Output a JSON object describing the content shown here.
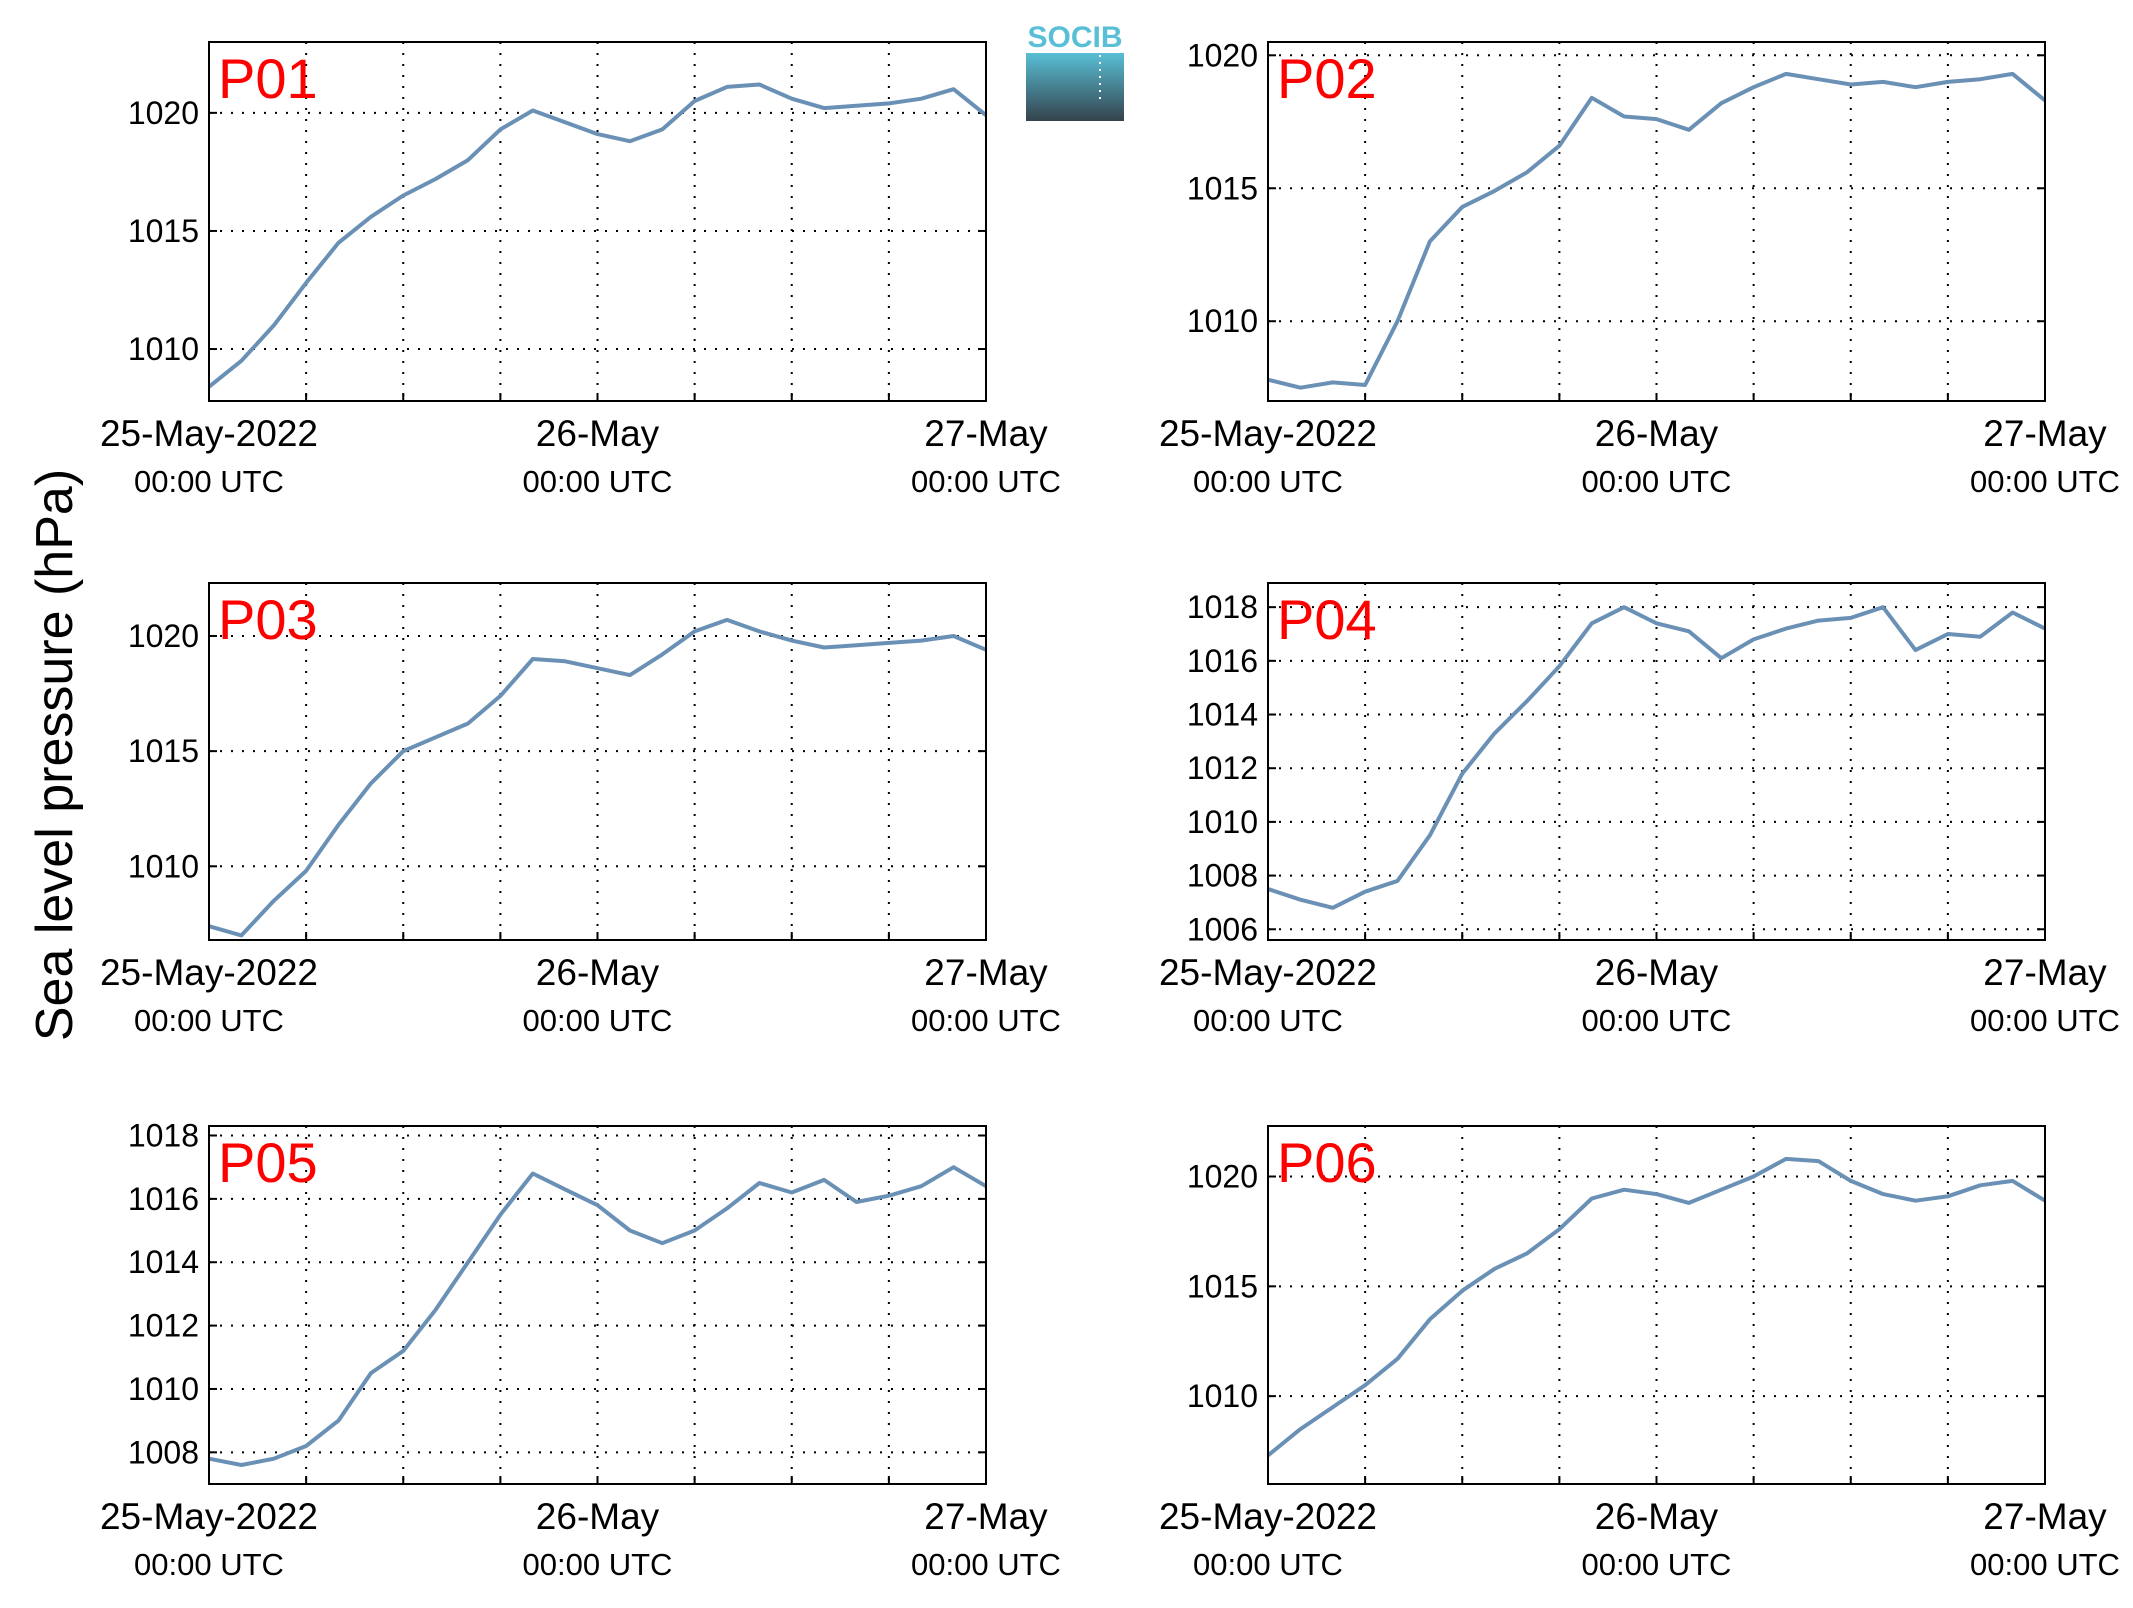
{
  "figure": {
    "ylabel": "Sea level pressure (hPa)",
    "logo_text": "SOCIB"
  },
  "colors": {
    "line": "#6a91b5",
    "title": "#ff0000",
    "logo_top": "#59bfd6",
    "logo_bottom": "#34424c"
  },
  "x_axis": {
    "range": [
      "2022-05-25 00:00",
      "2022-05-27 00:00"
    ],
    "major_ticks": [
      {
        "x": "2022-05-25 00:00",
        "date": "25-May-2022",
        "time": "00:00 UTC"
      },
      {
        "x": "2022-05-26 00:00",
        "date": "26-May",
        "time": "00:00 UTC"
      },
      {
        "x": "2022-05-27 00:00",
        "date": "27-May",
        "time": "00:00 UTC"
      }
    ],
    "grid_every_hours": 6,
    "grid": true,
    "grid_style": "dotted"
  },
  "chart_data": [
    {
      "type": "line",
      "title": "P01",
      "ylim": [
        1007.8,
        1023
      ],
      "yticks": [
        1010,
        1015,
        1020
      ],
      "series": [
        {
          "x": [
            "2022-05-25 00:00",
            "2022-05-25 02:00",
            "2022-05-25 04:00",
            "2022-05-25 06:00",
            "2022-05-25 08:00",
            "2022-05-25 10:00",
            "2022-05-25 12:00",
            "2022-05-25 14:00",
            "2022-05-25 16:00",
            "2022-05-25 18:00",
            "2022-05-25 20:00",
            "2022-05-25 22:00",
            "2022-05-26 00:00",
            "2022-05-26 02:00",
            "2022-05-26 04:00",
            "2022-05-26 06:00",
            "2022-05-26 08:00",
            "2022-05-26 10:00",
            "2022-05-26 12:00",
            "2022-05-26 14:00",
            "2022-05-26 16:00",
            "2022-05-26 18:00",
            "2022-05-26 20:00",
            "2022-05-26 22:00",
            "2022-05-27 00:00"
          ],
          "y": [
            1008.4,
            1009.5,
            1011.0,
            1012.8,
            1014.5,
            1015.6,
            1016.5,
            1017.2,
            1018.0,
            1019.3,
            1020.1,
            1019.6,
            1019.1,
            1018.8,
            1019.3,
            1020.5,
            1021.1,
            1021.2,
            1020.6,
            1020.2,
            1020.3,
            1020.4,
            1020.6,
            1021.0,
            1019.9
          ]
        }
      ]
    },
    {
      "type": "line",
      "title": "P02",
      "ylim": [
        1007.0,
        1020.5
      ],
      "yticks": [
        1010,
        1015,
        1020
      ],
      "series": [
        {
          "x": [
            "2022-05-25 00:00",
            "2022-05-25 02:00",
            "2022-05-25 04:00",
            "2022-05-25 06:00",
            "2022-05-25 08:00",
            "2022-05-25 10:00",
            "2022-05-25 12:00",
            "2022-05-25 14:00",
            "2022-05-25 16:00",
            "2022-05-25 18:00",
            "2022-05-25 20:00",
            "2022-05-25 22:00",
            "2022-05-26 00:00",
            "2022-05-26 02:00",
            "2022-05-26 04:00",
            "2022-05-26 06:00",
            "2022-05-26 08:00",
            "2022-05-26 10:00",
            "2022-05-26 12:00",
            "2022-05-26 14:00",
            "2022-05-26 16:00",
            "2022-05-26 18:00",
            "2022-05-26 20:00",
            "2022-05-26 22:00",
            "2022-05-27 00:00"
          ],
          "y": [
            1007.8,
            1007.5,
            1007.7,
            1007.6,
            1010.0,
            1013.0,
            1014.3,
            1014.9,
            1015.6,
            1016.6,
            1018.4,
            1017.7,
            1017.6,
            1017.2,
            1018.2,
            1018.8,
            1019.3,
            1019.1,
            1018.9,
            1019.0,
            1018.8,
            1019.0,
            1019.1,
            1019.3,
            1018.3
          ]
        }
      ]
    },
    {
      "type": "line",
      "title": "P03",
      "ylim": [
        1006.8,
        1022.3
      ],
      "yticks": [
        1010,
        1015,
        1020
      ],
      "series": [
        {
          "x": [
            "2022-05-25 00:00",
            "2022-05-25 02:00",
            "2022-05-25 04:00",
            "2022-05-25 06:00",
            "2022-05-25 08:00",
            "2022-05-25 10:00",
            "2022-05-25 12:00",
            "2022-05-25 14:00",
            "2022-05-25 16:00",
            "2022-05-25 18:00",
            "2022-05-25 20:00",
            "2022-05-25 22:00",
            "2022-05-26 00:00",
            "2022-05-26 02:00",
            "2022-05-26 04:00",
            "2022-05-26 06:00",
            "2022-05-26 08:00",
            "2022-05-26 10:00",
            "2022-05-26 12:00",
            "2022-05-26 14:00",
            "2022-05-26 16:00",
            "2022-05-26 18:00",
            "2022-05-26 20:00",
            "2022-05-26 22:00",
            "2022-05-27 00:00"
          ],
          "y": [
            1007.4,
            1007.0,
            1008.5,
            1009.8,
            1011.8,
            1013.6,
            1015.0,
            1015.6,
            1016.2,
            1017.4,
            1019.0,
            1018.9,
            1018.6,
            1018.3,
            1019.2,
            1020.2,
            1020.7,
            1020.2,
            1019.8,
            1019.5,
            1019.6,
            1019.7,
            1019.8,
            1020.0,
            1019.4
          ]
        }
      ]
    },
    {
      "type": "line",
      "title": "P04",
      "ylim": [
        1005.6,
        1018.9
      ],
      "yticks": [
        1006,
        1008,
        1010,
        1012,
        1014,
        1016,
        1018
      ],
      "series": [
        {
          "x": [
            "2022-05-25 00:00",
            "2022-05-25 02:00",
            "2022-05-25 04:00",
            "2022-05-25 06:00",
            "2022-05-25 08:00",
            "2022-05-25 10:00",
            "2022-05-25 12:00",
            "2022-05-25 14:00",
            "2022-05-25 16:00",
            "2022-05-25 18:00",
            "2022-05-25 20:00",
            "2022-05-25 22:00",
            "2022-05-26 00:00",
            "2022-05-26 02:00",
            "2022-05-26 04:00",
            "2022-05-26 06:00",
            "2022-05-26 08:00",
            "2022-05-26 10:00",
            "2022-05-26 12:00",
            "2022-05-26 14:00",
            "2022-05-26 16:00",
            "2022-05-26 18:00",
            "2022-05-26 20:00",
            "2022-05-26 22:00",
            "2022-05-27 00:00"
          ],
          "y": [
            1007.5,
            1007.1,
            1006.8,
            1007.4,
            1007.8,
            1009.5,
            1011.8,
            1013.3,
            1014.5,
            1015.8,
            1017.4,
            1018.0,
            1017.4,
            1017.1,
            1016.1,
            1016.8,
            1017.2,
            1017.5,
            1017.6,
            1018.0,
            1016.4,
            1017.0,
            1016.9,
            1017.8,
            1017.2
          ]
        }
      ]
    },
    {
      "type": "line",
      "title": "P05",
      "ylim": [
        1007.0,
        1018.3
      ],
      "yticks": [
        1008,
        1010,
        1012,
        1014,
        1016,
        1018
      ],
      "series": [
        {
          "x": [
            "2022-05-25 00:00",
            "2022-05-25 02:00",
            "2022-05-25 04:00",
            "2022-05-25 06:00",
            "2022-05-25 08:00",
            "2022-05-25 10:00",
            "2022-05-25 12:00",
            "2022-05-25 14:00",
            "2022-05-25 16:00",
            "2022-05-25 18:00",
            "2022-05-25 20:00",
            "2022-05-25 22:00",
            "2022-05-26 00:00",
            "2022-05-26 02:00",
            "2022-05-26 04:00",
            "2022-05-26 06:00",
            "2022-05-26 08:00",
            "2022-05-26 10:00",
            "2022-05-26 12:00",
            "2022-05-26 14:00",
            "2022-05-26 16:00",
            "2022-05-26 18:00",
            "2022-05-26 20:00",
            "2022-05-26 22:00",
            "2022-05-27 00:00"
          ],
          "y": [
            1007.8,
            1007.6,
            1007.8,
            1008.2,
            1009.0,
            1010.5,
            1011.2,
            1012.5,
            1014.0,
            1015.5,
            1016.8,
            1016.3,
            1015.8,
            1015.0,
            1014.6,
            1015.0,
            1015.7,
            1016.5,
            1016.2,
            1016.6,
            1015.9,
            1016.1,
            1016.4,
            1017.0,
            1016.4
          ]
        }
      ]
    },
    {
      "type": "line",
      "title": "P06",
      "ylim": [
        1006.0,
        1022.3
      ],
      "yticks": [
        1010,
        1015,
        1020
      ],
      "series": [
        {
          "x": [
            "2022-05-25 00:00",
            "2022-05-25 02:00",
            "2022-05-25 04:00",
            "2022-05-25 06:00",
            "2022-05-25 08:00",
            "2022-05-25 10:00",
            "2022-05-25 12:00",
            "2022-05-25 14:00",
            "2022-05-25 16:00",
            "2022-05-25 18:00",
            "2022-05-25 20:00",
            "2022-05-25 22:00",
            "2022-05-26 00:00",
            "2022-05-26 02:00",
            "2022-05-26 04:00",
            "2022-05-26 06:00",
            "2022-05-26 08:00",
            "2022-05-26 10:00",
            "2022-05-26 12:00",
            "2022-05-26 14:00",
            "2022-05-26 16:00",
            "2022-05-26 18:00",
            "2022-05-26 20:00",
            "2022-05-26 22:00",
            "2022-05-27 00:00"
          ],
          "y": [
            1007.3,
            1008.5,
            1009.5,
            1010.5,
            1011.7,
            1013.5,
            1014.8,
            1015.8,
            1016.5,
            1017.6,
            1019.0,
            1019.4,
            1019.2,
            1018.8,
            1019.4,
            1020.0,
            1020.8,
            1020.7,
            1019.8,
            1019.2,
            1018.9,
            1019.1,
            1019.6,
            1019.8,
            1018.9
          ]
        }
      ]
    }
  ]
}
